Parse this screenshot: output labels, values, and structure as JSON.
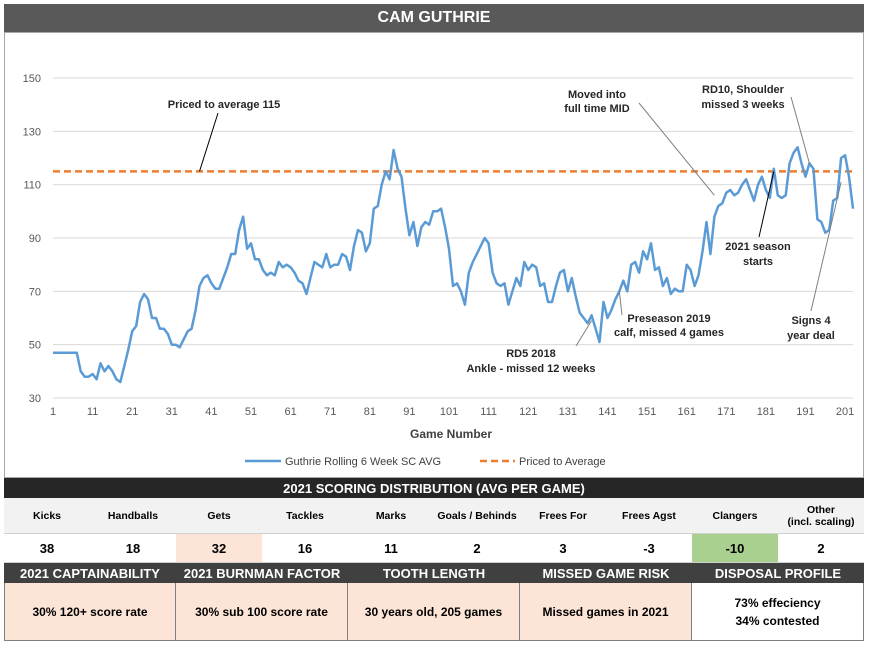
{
  "title": "CAM GUTHRIE",
  "chart_data": {
    "type": "line",
    "xlabel": "Game Number",
    "ylabel": "",
    "xlim": [
      1,
      203
    ],
    "ylim": [
      30,
      150
    ],
    "x_ticks": [
      1,
      11,
      21,
      31,
      41,
      51,
      61,
      71,
      81,
      91,
      101,
      111,
      121,
      131,
      141,
      151,
      161,
      171,
      181,
      191,
      201
    ],
    "y_ticks": [
      30,
      50,
      70,
      90,
      110,
      130,
      150
    ],
    "series": [
      {
        "name": "Guthrie Rolling 6 Week SC AVG",
        "color": "#5b9bd5",
        "style": "solid",
        "points": [
          [
            1,
            47
          ],
          [
            6,
            47
          ],
          [
            7,
            47
          ],
          [
            8,
            40
          ],
          [
            9,
            38
          ],
          [
            10,
            38
          ],
          [
            11,
            39
          ],
          [
            12,
            37
          ],
          [
            13,
            43
          ],
          [
            14,
            40
          ],
          [
            15,
            42
          ],
          [
            16,
            40
          ],
          [
            17,
            37
          ],
          [
            18,
            36
          ],
          [
            19,
            42
          ],
          [
            20,
            48
          ],
          [
            21,
            55
          ],
          [
            22,
            57
          ],
          [
            23,
            66
          ],
          [
            24,
            69
          ],
          [
            25,
            67
          ],
          [
            26,
            60
          ],
          [
            27,
            60
          ],
          [
            28,
            56
          ],
          [
            29,
            56
          ],
          [
            30,
            54
          ],
          [
            31,
            50
          ],
          [
            32,
            50
          ],
          [
            33,
            49
          ],
          [
            34,
            52
          ],
          [
            35,
            55
          ],
          [
            36,
            56
          ],
          [
            37,
            63
          ],
          [
            38,
            72
          ],
          [
            39,
            75
          ],
          [
            40,
            76
          ],
          [
            41,
            73
          ],
          [
            42,
            71
          ],
          [
            43,
            71
          ],
          [
            44,
            75
          ],
          [
            45,
            79
          ],
          [
            46,
            84
          ],
          [
            47,
            84
          ],
          [
            48,
            93
          ],
          [
            49,
            98
          ],
          [
            50,
            86
          ],
          [
            51,
            88
          ],
          [
            52,
            82
          ],
          [
            53,
            82
          ],
          [
            54,
            78
          ],
          [
            55,
            76
          ],
          [
            56,
            77
          ],
          [
            57,
            76
          ],
          [
            58,
            81
          ],
          [
            59,
            79
          ],
          [
            60,
            80
          ],
          [
            61,
            79
          ],
          [
            62,
            77
          ],
          [
            63,
            74
          ],
          [
            64,
            73
          ],
          [
            65,
            69
          ],
          [
            66,
            75
          ],
          [
            67,
            81
          ],
          [
            68,
            80
          ],
          [
            69,
            79
          ],
          [
            70,
            84
          ],
          [
            71,
            79
          ],
          [
            72,
            80
          ],
          [
            73,
            80
          ],
          [
            74,
            84
          ],
          [
            75,
            83
          ],
          [
            76,
            78
          ],
          [
            77,
            87
          ],
          [
            78,
            93
          ],
          [
            79,
            92
          ],
          [
            80,
            85
          ],
          [
            81,
            88
          ],
          [
            82,
            101
          ],
          [
            83,
            102
          ],
          [
            84,
            110
          ],
          [
            85,
            115
          ],
          [
            86,
            112
          ],
          [
            87,
            123
          ],
          [
            88,
            116
          ],
          [
            89,
            113
          ],
          [
            90,
            101
          ],
          [
            91,
            91
          ],
          [
            92,
            96
          ],
          [
            93,
            87
          ],
          [
            94,
            94
          ],
          [
            95,
            96
          ],
          [
            96,
            95
          ],
          [
            97,
            100
          ],
          [
            98,
            100
          ],
          [
            99,
            101
          ],
          [
            100,
            94
          ],
          [
            101,
            86
          ],
          [
            102,
            72
          ],
          [
            103,
            73
          ],
          [
            104,
            70
          ],
          [
            105,
            65
          ],
          [
            106,
            77
          ],
          [
            107,
            81
          ],
          [
            108,
            84
          ],
          [
            109,
            87
          ],
          [
            110,
            90
          ],
          [
            111,
            88
          ],
          [
            112,
            77
          ],
          [
            113,
            73
          ],
          [
            114,
            72
          ],
          [
            115,
            73
          ],
          [
            116,
            65
          ],
          [
            117,
            70
          ],
          [
            118,
            75
          ],
          [
            119,
            72
          ],
          [
            120,
            81
          ],
          [
            121,
            78
          ],
          [
            122,
            80
          ],
          [
            123,
            79
          ],
          [
            124,
            72
          ],
          [
            125,
            73
          ],
          [
            126,
            66
          ],
          [
            127,
            66
          ],
          [
            128,
            72
          ],
          [
            129,
            77
          ],
          [
            130,
            78
          ],
          [
            131,
            70
          ],
          [
            132,
            75
          ],
          [
            133,
            68
          ],
          [
            134,
            62
          ],
          [
            135,
            60
          ],
          [
            136,
            58
          ],
          [
            137,
            61
          ],
          [
            138,
            56
          ],
          [
            139,
            51
          ],
          [
            140,
            66
          ],
          [
            141,
            60
          ],
          [
            142,
            63
          ],
          [
            143,
            67
          ],
          [
            144,
            70
          ],
          [
            145,
            74
          ],
          [
            146,
            70
          ],
          [
            147,
            80
          ],
          [
            148,
            81
          ],
          [
            149,
            77
          ],
          [
            150,
            85
          ],
          [
            151,
            82
          ],
          [
            152,
            88
          ],
          [
            153,
            78
          ],
          [
            154,
            79
          ],
          [
            155,
            72
          ],
          [
            156,
            75
          ],
          [
            157,
            69
          ],
          [
            158,
            71
          ],
          [
            159,
            70
          ],
          [
            160,
            70
          ],
          [
            161,
            80
          ],
          [
            162,
            78
          ],
          [
            163,
            72
          ],
          [
            164,
            76
          ],
          [
            165,
            85
          ],
          [
            166,
            96
          ],
          [
            167,
            84
          ],
          [
            168,
            98
          ],
          [
            169,
            102
          ],
          [
            170,
            103
          ],
          [
            171,
            107
          ],
          [
            172,
            108
          ],
          [
            173,
            106
          ],
          [
            174,
            107
          ],
          [
            175,
            110
          ],
          [
            176,
            112
          ],
          [
            177,
            108
          ],
          [
            178,
            104
          ],
          [
            179,
            110
          ],
          [
            180,
            113
          ],
          [
            181,
            108
          ],
          [
            182,
            105
          ],
          [
            183,
            116
          ],
          [
            184,
            106
          ],
          [
            185,
            105
          ],
          [
            186,
            106
          ],
          [
            187,
            118
          ],
          [
            188,
            122
          ],
          [
            189,
            124
          ],
          [
            190,
            118
          ],
          [
            191,
            113
          ],
          [
            192,
            118
          ],
          [
            193,
            116
          ],
          [
            194,
            97
          ],
          [
            195,
            96
          ],
          [
            196,
            92
          ],
          [
            197,
            93
          ],
          [
            198,
            104
          ],
          [
            199,
            105
          ],
          [
            200,
            120
          ],
          [
            201,
            121
          ],
          [
            202,
            113
          ],
          [
            203,
            101
          ]
        ]
      },
      {
        "name": "Priced to Average",
        "color": "#ed7d31",
        "style": "dashed",
        "value": 115
      }
    ],
    "legend": "bottom",
    "annotations": [
      {
        "text": "Priced to average 115",
        "x": 38,
        "y": 115
      },
      {
        "text": "Moved into full time MID",
        "x": 168,
        "y": 106
      },
      {
        "text": "RD10, Shoulder missed 3 weeks",
        "x": 192,
        "y": 118
      },
      {
        "text": "2021 season starts",
        "x": 183,
        "y": 115
      },
      {
        "text": "Preseason 2019 calf, missed 4 games",
        "x": 144,
        "y": 70
      },
      {
        "text": "RD5 2018 Ankle - missed 12 weeks",
        "x": 137,
        "y": 59
      },
      {
        "text": "Signs 4 year deal",
        "x": 200,
        "y": 111
      }
    ]
  },
  "annotation_text": {
    "priced": "Priced to average 115",
    "moved_1": "Moved into",
    "moved_2": "full time MID",
    "rd10_1": "RD10, Shoulder",
    "rd10_2": "missed 3 weeks",
    "season_1": "2021 season",
    "season_2": "starts",
    "preseason_1": "Preseason 2019",
    "preseason_2": "calf, missed 4 games",
    "rd5_1": "RD5 2018",
    "rd5_2": "Ankle - missed 12 weeks",
    "signs_1": "Signs 4",
    "signs_2": "year deal"
  },
  "scoring": {
    "header": "2021 SCORING DISTRIBUTION (AVG PER GAME)",
    "columns": [
      {
        "label": "Kicks",
        "value": "38",
        "highlight": ""
      },
      {
        "label": "Handballs",
        "value": "18",
        "highlight": ""
      },
      {
        "label": "Gets",
        "value": "32",
        "highlight": "peach"
      },
      {
        "label": "Tackles",
        "value": "16",
        "highlight": ""
      },
      {
        "label": "Marks",
        "value": "11",
        "highlight": ""
      },
      {
        "label": "Goals / Behinds",
        "value": "2",
        "highlight": ""
      },
      {
        "label": "Frees For",
        "value": "3",
        "highlight": ""
      },
      {
        "label": "Frees Agst",
        "value": "-3",
        "highlight": ""
      },
      {
        "label": "Clangers",
        "value": "-10",
        "highlight": "green"
      },
      {
        "label": "Other",
        "sublabel": "(incl. scaling)",
        "value": "2",
        "highlight": ""
      }
    ]
  },
  "factors": [
    {
      "header": "2021 CAPTAINABILITY",
      "value": "30% 120+ score rate",
      "bg": "peach"
    },
    {
      "header": "2021 BURNMAN FACTOR",
      "value": "30% sub 100 score rate",
      "bg": "peach"
    },
    {
      "header": "TOOTH LENGTH",
      "value": "30 years old, 205 games",
      "bg": "peach"
    },
    {
      "header": "MISSED GAME RISK",
      "value": "Missed games in 2021",
      "bg": "peach"
    },
    {
      "header": "DISPOSAL PROFILE",
      "value_line1": "73% effeciency",
      "value_line2": "34% contested",
      "bg": "white"
    }
  ]
}
